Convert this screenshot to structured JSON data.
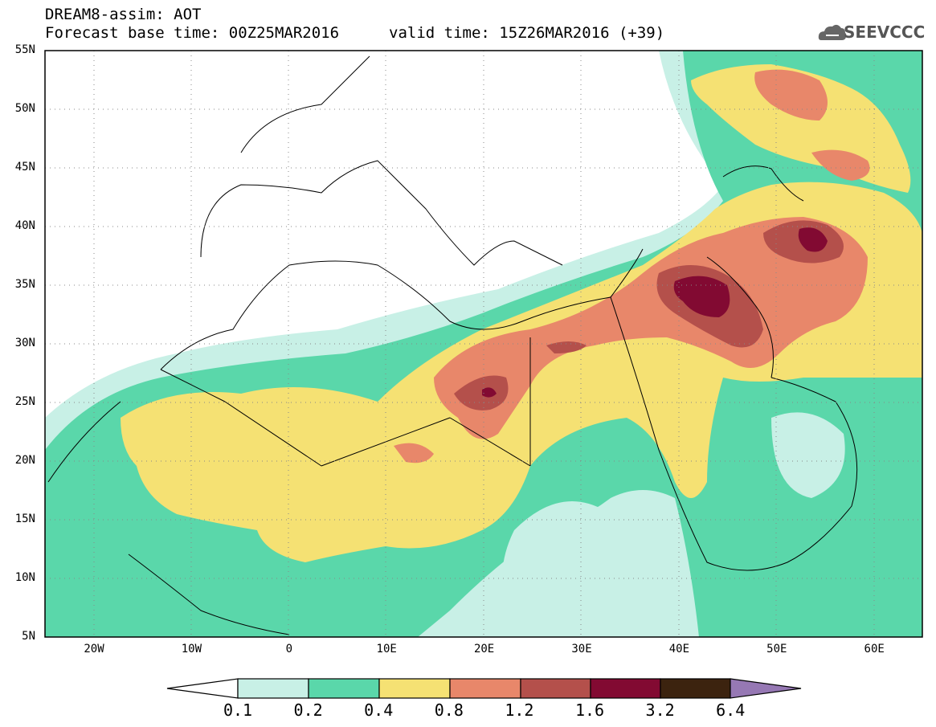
{
  "header": {
    "line1": "DREAM8-assim: AOT",
    "line2": "Forecast base time: 00Z25MAR2016",
    "line2b": "valid time: 15Z26MAR2016 (+39)",
    "logo": "SEEVCCC"
  },
  "axes": {
    "lat_labels": [
      "55N",
      "50N",
      "45N",
      "40N",
      "35N",
      "30N",
      "25N",
      "20N",
      "15N",
      "10N",
      "5N"
    ],
    "lon_labels": [
      "20W",
      "10W",
      "0",
      "10E",
      "20E",
      "30E",
      "40E",
      "50E",
      "60E"
    ]
  },
  "colorbar": {
    "labels": [
      "0.1",
      "0.2",
      "0.4",
      "0.8",
      "1.2",
      "1.6",
      "3.2",
      "6.4"
    ],
    "colors": [
      "#ffffff",
      "#c8f0e6",
      "#5ad7aa",
      "#f5e173",
      "#e8876a",
      "#b4504b",
      "#820a32",
      "#3c230f",
      "#9678b4"
    ]
  },
  "map": {
    "variable": "AOT",
    "lat_range": [
      5,
      55
    ],
    "lon_range": [
      -25,
      65
    ]
  }
}
